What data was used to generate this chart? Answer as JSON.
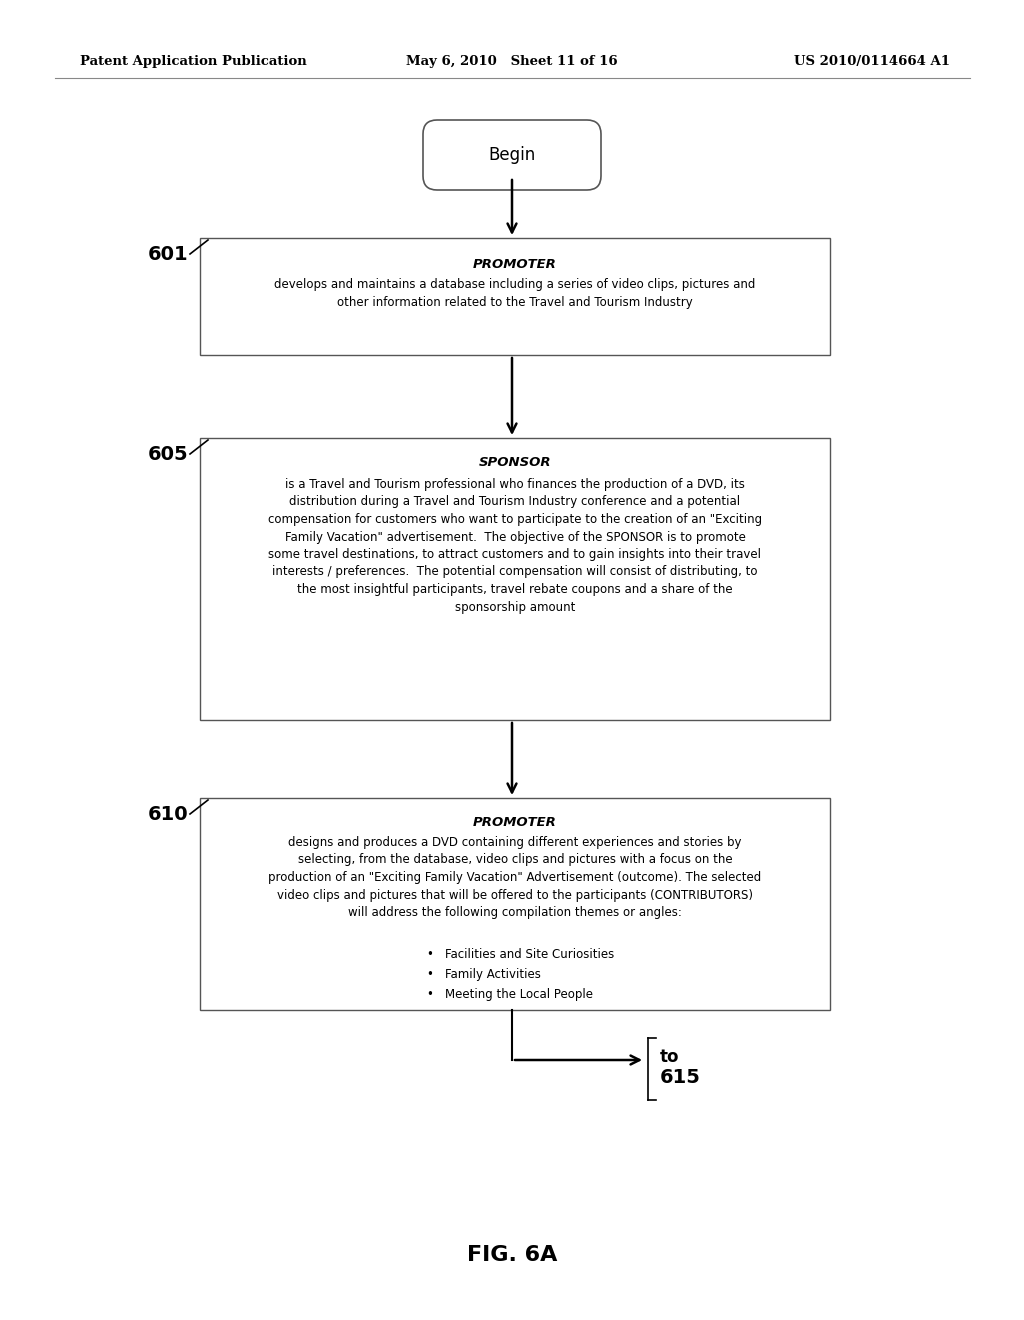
{
  "header_left": "Patent Application Publication",
  "header_mid": "May 6, 2010   Sheet 11 of 16",
  "header_right": "US 2010/0114664 A1",
  "begin_label": "Begin",
  "box1_label": "601",
  "box1_title": "PROMOTER",
  "box1_text": "develops and maintains a database including a series of video clips, pictures and\nother information related to the Travel and Tourism Industry",
  "box2_label": "605",
  "box2_title": "SPONSOR",
  "box2_text": "is a Travel and Tourism professional who finances the production of a DVD, its\ndistribution during a Travel and Tourism Industry conference and a potential\ncompensation for customers who want to participate to the creation of an \"Exciting\nFamily Vacation\" advertisement.  The objective of the SPONSOR is to promote\nsome travel destinations, to attract customers and to gain insights into their travel\ninterests / preferences.  The potential compensation will consist of distributing, to\nthe most insightful participants, travel rebate coupons and a share of the\nsponsorship amount",
  "box3_label": "610",
  "box3_title": "PROMOTER",
  "box3_text": "designs and produces a DVD containing different experiences and stories by\nselecting, from the database, video clips and pictures with a focus on the\nproduction of an \"Exciting Family Vacation\" Advertisement (outcome). The selected\nvideo clips and pictures that will be offered to the participants (CONTRIBUTORS)\nwill address the following compilation themes or angles:",
  "box3_bullets": [
    "Facilities and Site Curiosities",
    "Family Activities",
    "Meeting the Local People"
  ],
  "connector_to": "to",
  "connector_615": "615",
  "fig_label": "FIG. 6A",
  "bg_color": "#ffffff",
  "box_edge_color": "#555555",
  "text_color": "#000000",
  "arrow_color": "#000000"
}
